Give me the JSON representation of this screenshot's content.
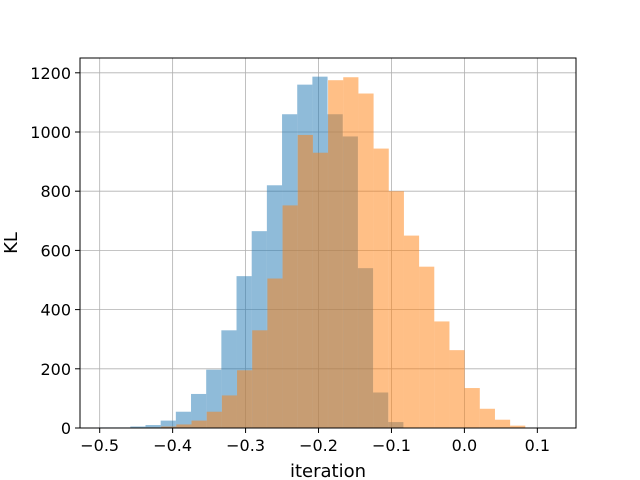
{
  "chart_data": {
    "type": "histogram",
    "title": "",
    "xlabel": "iteration",
    "ylabel": "KL",
    "xlim": [
      -0.527,
      0.153
    ],
    "ylim": [
      0,
      1250
    ],
    "grid": true,
    "xticks": [
      -0.5,
      -0.4,
      -0.3,
      -0.2,
      -0.1,
      0.0,
      0.1
    ],
    "xtick_labels": [
      "−0.5",
      "−0.4",
      "−0.3",
      "−0.2",
      "−0.1",
      "0.0",
      "0.1"
    ],
    "yticks": [
      0,
      200,
      400,
      600,
      800,
      1000,
      1200
    ],
    "ytick_labels": [
      "0",
      "200",
      "400",
      "600",
      "800",
      "1000",
      "1200"
    ],
    "series": [
      {
        "color": "#1f77b4",
        "alpha": 0.5,
        "bin_edges": [
          -0.5,
          -0.458,
          -0.4372,
          -0.4164,
          -0.3956,
          -0.3748,
          -0.354,
          -0.3332,
          -0.3124,
          -0.2916,
          -0.2708,
          -0.25,
          -0.2292,
          -0.2084,
          -0.1876,
          -0.1668,
          -0.146,
          -0.1252,
          -0.1044,
          -0.0836
        ],
        "counts": [
          2,
          5,
          10,
          25,
          55,
          115,
          197,
          330,
          513,
          665,
          820,
          1060,
          1160,
          1187,
          1060,
          985,
          540,
          120,
          20
        ]
      },
      {
        "color": "#ff7f0e",
        "alpha": 0.5,
        "bin_edges": [
          -0.4365,
          -0.4157,
          -0.3949,
          -0.3741,
          -0.3533,
          -0.3325,
          -0.3117,
          -0.2909,
          -0.2701,
          -0.2493,
          -0.2285,
          -0.2077,
          -0.1869,
          -0.1661,
          -0.1453,
          -0.1245,
          -0.1037,
          -0.0829,
          -0.0621,
          -0.0413,
          -0.0205,
          0.0003,
          0.0211,
          0.0419,
          0.0627,
          0.0835
        ],
        "counts": [
          2,
          5,
          12,
          25,
          55,
          110,
          195,
          330,
          505,
          752,
          990,
          930,
          1175,
          1185,
          1130,
          944,
          800,
          650,
          545,
          360,
          263,
          135,
          65,
          28,
          8
        ]
      }
    ]
  }
}
